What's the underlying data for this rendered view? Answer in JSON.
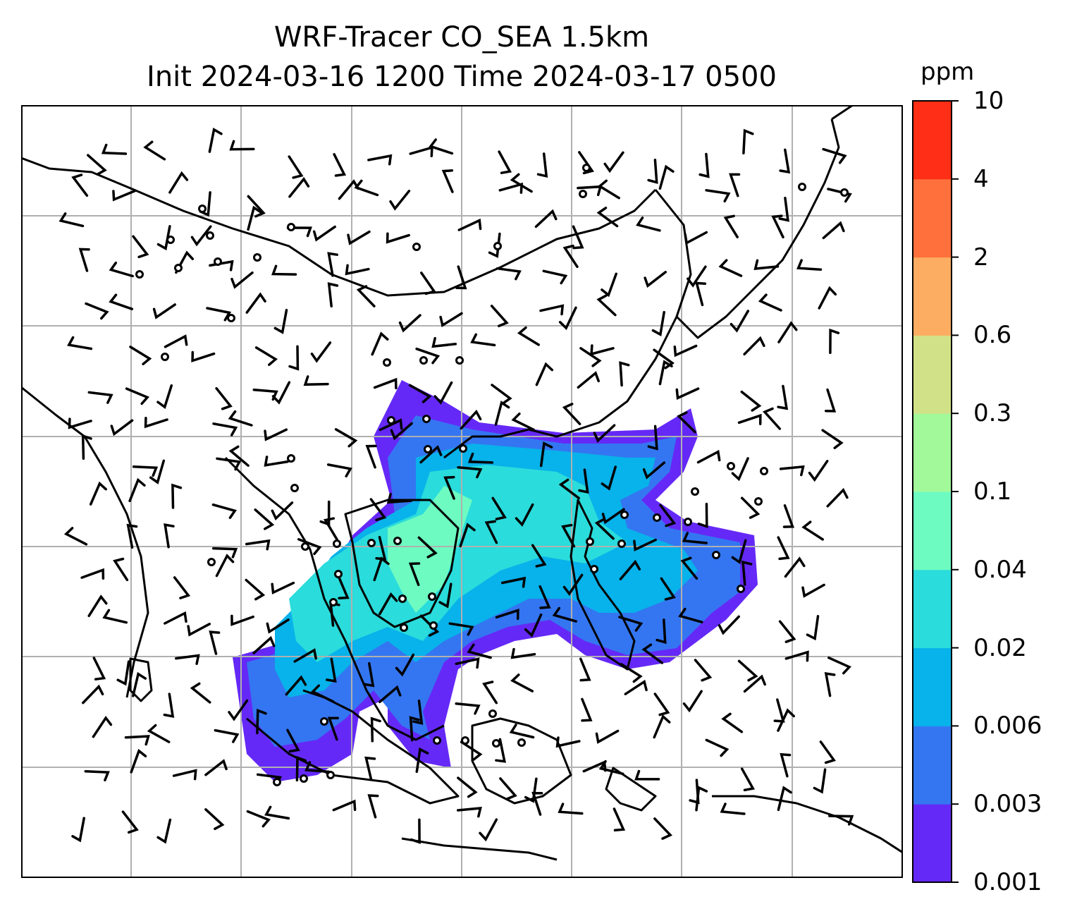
{
  "title_line1": "WRF-Tracer CO_SEA 1.5km",
  "title_line2": "Init 2024-03-16 1200 Time 2024-03-17 0500",
  "colorbar": {
    "unit": "ppm",
    "levels": [
      "0.001",
      "0.003",
      "0.006",
      "0.02",
      "0.02",
      "0.04",
      "0.1",
      "0.3",
      "0.6",
      "2",
      "4",
      "10"
    ],
    "colors": [
      "#6529f7",
      "#3476f1",
      "#08b2ea",
      "#2adcdb",
      "#6dfbc1",
      "#a1f99a",
      "#d1e187",
      "#fcad62",
      "#ff703c",
      "#ff2e17"
    ]
  },
  "map": {
    "grid_lines": true,
    "concentration_plume_colors": [
      "#6529f7",
      "#3476f1",
      "#08b2ea",
      "#2adcdb",
      "#6dfbc1"
    ],
    "wind_barbs": true,
    "calm_markers": true
  }
}
